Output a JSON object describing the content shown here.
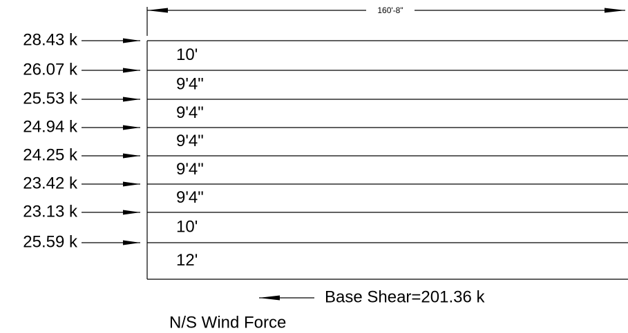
{
  "dimension": {
    "label": "160'-8\""
  },
  "floors": [
    {
      "force": "28.43 k",
      "height": "10'"
    },
    {
      "force": "26.07 k",
      "height": "9'4\""
    },
    {
      "force": "25.53 k",
      "height": "9'4\""
    },
    {
      "force": "24.94 k",
      "height": "9'4\""
    },
    {
      "force": "24.25 k",
      "height": "9'4\""
    },
    {
      "force": "23.42 k",
      "height": "9'4\""
    },
    {
      "force": "23.13 k",
      "height": "10'"
    },
    {
      "force": "25.59 k",
      "height": "12'"
    }
  ],
  "base_shear": "Base Shear=201.36 k",
  "title": "N/S Wind Force"
}
